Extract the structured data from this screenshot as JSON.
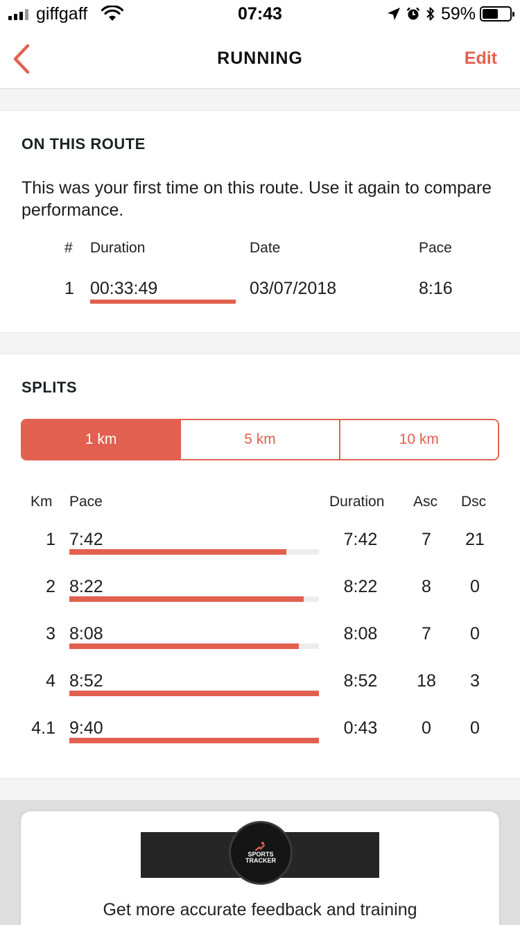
{
  "status_bar": {
    "carrier": "giffgaff",
    "time": "07:43",
    "battery_percent": "59%",
    "battery_level": 0.59,
    "icons": [
      "signal-icon",
      "wifi-icon",
      "location-arrow-icon",
      "alarm-icon",
      "bluetooth-icon",
      "battery-icon"
    ]
  },
  "nav": {
    "back_icon": "chevron-left-icon",
    "title": "RUNNING",
    "edit_label": "Edit"
  },
  "route": {
    "header": "ON THIS ROUTE",
    "description": "This was your first time on this route. Use it again to compare performance.",
    "columns": {
      "num": "#",
      "duration": "Duration",
      "date": "Date",
      "pace": "Pace"
    },
    "rows": [
      {
        "num": "1",
        "duration": "00:33:49",
        "date": "03/07/2018",
        "pace": "8:16"
      }
    ]
  },
  "splits": {
    "header": "SPLITS",
    "tabs": [
      {
        "label": "1 km",
        "active": true
      },
      {
        "label": "5 km",
        "active": false
      },
      {
        "label": "10 km",
        "active": false
      }
    ],
    "columns": {
      "km": "Km",
      "pace": "Pace",
      "duration": "Duration",
      "asc": "Asc",
      "dsc": "Dsc"
    },
    "rows": [
      {
        "km": "1",
        "pace": "7:42",
        "pace_fraction": 0.87,
        "duration": "7:42",
        "asc": "7",
        "dsc": "21"
      },
      {
        "km": "2",
        "pace": "8:22",
        "pace_fraction": 0.94,
        "duration": "8:22",
        "asc": "8",
        "dsc": "0"
      },
      {
        "km": "3",
        "pace": "8:08",
        "pace_fraction": 0.92,
        "duration": "8:08",
        "asc": "7",
        "dsc": "0"
      },
      {
        "km": "4",
        "pace": "8:52",
        "pace_fraction": 1.0,
        "duration": "8:52",
        "asc": "18",
        "dsc": "3"
      },
      {
        "km": "4.1",
        "pace": "9:40",
        "pace_fraction": 1.0,
        "duration": "0:43",
        "asc": "0",
        "dsc": "0"
      }
    ]
  },
  "promo": {
    "logo_line1": "SPORTS",
    "logo_line2": "TRACKER",
    "text": "Get more accurate feedback and training"
  },
  "colors": {
    "accent": "#e2604f",
    "track": "#ededed",
    "section_gap": "#f4f4f4"
  }
}
